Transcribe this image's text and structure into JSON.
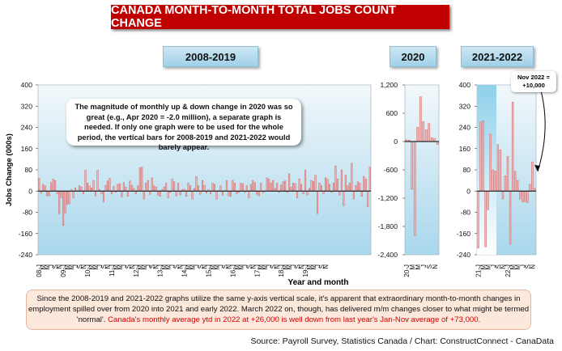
{
  "title": "CANADA MONTH-TO-MONTH TOTAL JOBS COUNT CHANGE",
  "period_labels": [
    "2008-2019",
    "2020",
    "2021-2022"
  ],
  "inner_note": "The magnitude of monthly up & down change in 2020 was so great (e.g., Apr 2020 = -2.0 million), a separate graph is needed. If only one graph were to be used for the whole period, the vertical bars for 2008-2019 and 2021-2022 would barely appear.",
  "nov_note": {
    "line1": "Nov 2022 =",
    "line2": "+10,000"
  },
  "bottom_note": {
    "main": "Since the 2008-2019 and 2021-2022 graphs utilize the same y-axis vertical scale, it's apparent that extraordinary month-to-month changes in employment spilled over from 2020 into 2021 and early 2022. March 2022 on, though, has delivered m/m changes closer to what might be termed 'normal'.",
    "highlight": "Canada's monthly average ytd in 2022 at +26,000 is well down from last year's Jan-Nov average of +73,000."
  },
  "source": "Source: Payroll Survey, Statistics Canada / Chart: ConstructConnect - CanaData",
  "colors": {
    "bar_fill": "#f4b6b6",
    "bar_stroke": "#d06060",
    "title_bg": "#c00000",
    "plot_bg_top": "#f2f8fb",
    "plot_bg_bottom": "#a9d7ec"
  },
  "chart_data": [
    {
      "type": "bar",
      "panel": "2008-2019",
      "ylabel": "Jobs Change (000s)",
      "xlabel": "Year and month",
      "ylim": [
        -240,
        400
      ],
      "yticks": [
        400,
        320,
        240,
        160,
        80,
        0,
        -80,
        -160,
        -240
      ],
      "xtick_labels": [
        "08-J",
        "M",
        "M",
        "J",
        "S",
        "N",
        "09-J",
        "M",
        "M",
        "J",
        "S",
        "N",
        "10-J",
        "M",
        "M",
        "J",
        "S",
        "N",
        "11-J",
        "M",
        "M",
        "J",
        "S",
        "N",
        "12-J",
        "M",
        "M",
        "J",
        "S",
        "N",
        "13-J",
        "M",
        "M",
        "J",
        "S",
        "N",
        "14-J",
        "M",
        "M",
        "J",
        "S",
        "N",
        "15-J",
        "M",
        "M",
        "J",
        "S",
        "N",
        "16-J",
        "M",
        "M",
        "J",
        "S",
        "N",
        "17-J",
        "M",
        "M",
        "J",
        "S",
        "N",
        "18-J",
        "M",
        "M",
        "J",
        "S",
        "N",
        "19-J",
        "M",
        "M",
        "J",
        "S",
        "N"
      ],
      "values": [
        48,
        -8,
        25,
        20,
        -18,
        -18,
        32,
        45,
        40,
        -10,
        -85,
        -25,
        -130,
        -82,
        -50,
        -48,
        5,
        -25,
        12,
        2,
        20,
        15,
        -10,
        78,
        30,
        20,
        12,
        40,
        -18,
        78,
        5,
        -10,
        -40,
        22,
        38,
        48,
        -10,
        18,
        -5,
        25,
        28,
        -22,
        32,
        15,
        -20,
        38,
        22,
        10,
        -10,
        20,
        88,
        90,
        -30,
        30,
        40,
        -12,
        50,
        20,
        15,
        -15,
        -20,
        5,
        15,
        30,
        -25,
        -5,
        45,
        35,
        -18,
        30,
        -15,
        5,
        8,
        -20,
        30,
        20,
        -30,
        10,
        55,
        20,
        -12,
        40,
        22,
        -8,
        5,
        -10,
        30,
        25,
        -30,
        2,
        20,
        -15,
        2,
        40,
        -18,
        -20,
        40,
        30,
        -10,
        -5,
        30,
        28,
        -5,
        20,
        -25,
        25,
        40,
        32,
        -12,
        -18,
        30,
        -6,
        -2,
        50,
        45,
        30,
        40,
        10,
        30,
        -5,
        22,
        35,
        38,
        -5,
        65,
        15,
        30,
        28,
        -25,
        45,
        25,
        -10,
        80,
        -15,
        10,
        40,
        35,
        60,
        -85,
        30,
        20,
        -10,
        50,
        45,
        25,
        -5,
        30,
        95,
        45,
        -15,
        80,
        -55,
        60,
        20,
        30,
        105,
        -30,
        20,
        35,
        30,
        -20,
        55,
        45,
        -60,
        90
      ]
    },
    {
      "type": "bar",
      "panel": "2020",
      "ylim": [
        -2400,
        1200
      ],
      "yticks": [
        1200,
        600,
        0,
        -600,
        -1200,
        -1800,
        -2400
      ],
      "xtick_labels": [
        "20-J",
        "M",
        "M",
        "J",
        "S",
        "N"
      ],
      "values": [
        35,
        30,
        -1010,
        -1990,
        300,
        950,
        420,
        250,
        380,
        80,
        60,
        -60
      ]
    },
    {
      "type": "bar",
      "panel": "2021-2022",
      "ylim": [
        -240,
        400
      ],
      "yticks": [
        400,
        320,
        240,
        160,
        80,
        0,
        -80,
        -160,
        -240
      ],
      "xtick_labels": [
        "21-J",
        "M",
        "M",
        "J",
        "S",
        "N",
        "22-J",
        "M",
        "M",
        "J",
        "S",
        "N"
      ],
      "values": [
        -215,
        260,
        265,
        -210,
        -70,
        215,
        80,
        75,
        175,
        155,
        -30,
        58,
        130,
        -200,
        335,
        75,
        40,
        -30,
        -40,
        -40,
        -43,
        25,
        110,
        10
      ],
      "annotation": "Nov 2022 = +10,000"
    }
  ]
}
